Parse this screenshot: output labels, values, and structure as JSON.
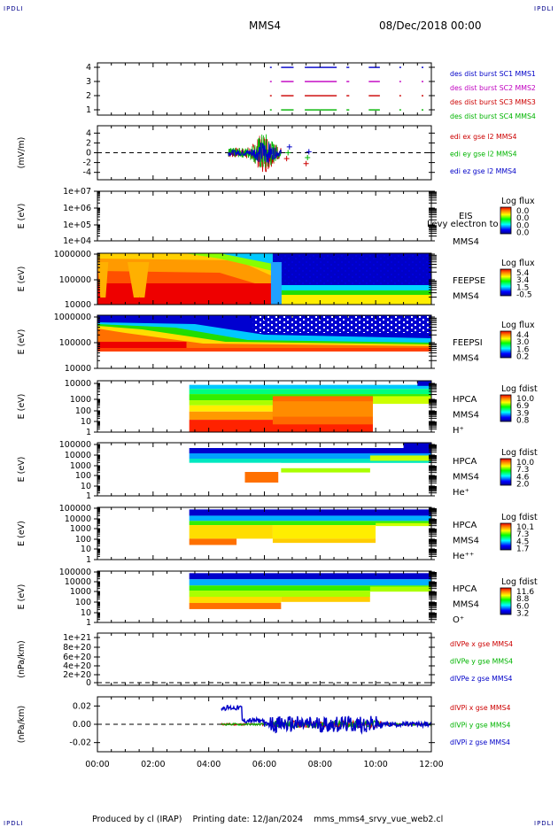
{
  "header": {
    "corner_label": "IPDLI",
    "spacecraft": "MMS4",
    "date_time": "08/Dec/2018 00:00"
  },
  "footer": {
    "produced_by": "Produced by cl (IRAP)",
    "printing_date": "Printing date: 12/Jan/2024",
    "script_name": "mms_mms4_srvy_vue_web2.cl"
  },
  "time_axis": {
    "ticks": [
      "00:00",
      "02:00",
      "04:00",
      "06:00",
      "08:00",
      "10:00",
      "12:00"
    ],
    "range_hours": [
      0,
      12
    ]
  },
  "chart_data": [
    {
      "id": "des-dist-burst",
      "type": "scatter",
      "yticks": [
        "4",
        "3",
        "2",
        "1"
      ],
      "ylim": [
        0.5,
        4.5
      ],
      "series": [
        {
          "name": "des dist burst SC1 MMS1",
          "color": "#0000c8",
          "y": 4
        },
        {
          "name": "des dist burst SC2 MMS2",
          "color": "#c000c0",
          "y": 3
        },
        {
          "name": "des dist burst SC3 MMS3",
          "color": "#cc0000",
          "y": 2
        },
        {
          "name": "des dist burst SC4 MMS4",
          "color": "#00b400",
          "y": 1
        }
      ],
      "burst_intervals_hours": [
        [
          6.2,
          6.25
        ],
        [
          6.6,
          7.05
        ],
        [
          7.45,
          8.6
        ],
        [
          8.95,
          9.05
        ],
        [
          9.75,
          10.15
        ],
        [
          10.85,
          10.9
        ],
        [
          11.65,
          11.7
        ]
      ]
    },
    {
      "id": "edi-e-field",
      "type": "line",
      "ylabel": "(mV/m)",
      "yticks": [
        "4",
        "2",
        "0",
        "-2",
        "-4"
      ],
      "ylim": [
        -5.5,
        5.5
      ],
      "series": [
        {
          "name": "edi ex gse l2 MMS4",
          "color": "#cc0000"
        },
        {
          "name": "edi ey gse l2 MMS4",
          "color": "#00b400"
        },
        {
          "name": "edi ez gse l2 MMS4",
          "color": "#0000c8"
        }
      ],
      "active_hours": [
        4.7,
        7.5
      ]
    },
    {
      "id": "eis",
      "type": "heatmap",
      "ylabel": "E (eV)",
      "yticks": [
        "1e+07",
        "1e+06",
        "1e+05",
        "1e+04"
      ],
      "labels": [
        "EIS",
        "MMS4"
      ],
      "overlay_text": "Levy electron to",
      "colorbar_title": "Log flux",
      "colorbar_ticks": [
        "0.0",
        "0.0",
        "0.0",
        "0.0"
      ]
    },
    {
      "id": "feeps-e",
      "type": "heatmap",
      "ylabel": "E (eV)",
      "yticks": [
        "1000000",
        "100000",
        "10000"
      ],
      "labels": [
        "FEEPSE",
        "MMS4"
      ],
      "colorbar_title": "Log flux",
      "colorbar_ticks": [
        "5.4",
        "3.4",
        "1.5",
        "-0.5"
      ],
      "transition_hours": 6.3
    },
    {
      "id": "feeps-i",
      "type": "heatmap",
      "ylabel": "E (eV)",
      "yticks": [
        "1000000",
        "100000",
        "10000"
      ],
      "labels": [
        "FEEPSI",
        "MMS4"
      ],
      "colorbar_title": "Log flux",
      "colorbar_ticks": [
        "4.4",
        "3.0",
        "1.6",
        "0.2"
      ]
    },
    {
      "id": "hpca-h",
      "type": "heatmap",
      "ylabel": "E (eV)",
      "yticks": [
        "10000",
        "1000",
        "100",
        "10",
        "1"
      ],
      "labels": [
        "HPCA",
        "MMS4",
        "H⁺"
      ],
      "colorbar_title": "Log fdist",
      "colorbar_ticks": [
        "10.0",
        "6.9",
        "3.9",
        "0.8"
      ],
      "data_start_hours": 3.3
    },
    {
      "id": "hpca-he",
      "type": "heatmap",
      "ylabel": "E (eV)",
      "yticks": [
        "100000",
        "10000",
        "1000",
        "100",
        "10",
        "1"
      ],
      "labels": [
        "HPCA",
        "MMS4",
        "He⁺"
      ],
      "colorbar_title": "Log fdist",
      "colorbar_ticks": [
        "10.0",
        "7.3",
        "4.6",
        "2.0"
      ],
      "data_start_hours": 3.3
    },
    {
      "id": "hpca-hepp",
      "type": "heatmap",
      "ylabel": "E (eV)",
      "yticks": [
        "100000",
        "10000",
        "1000",
        "100",
        "10",
        "1"
      ],
      "labels": [
        "HPCA",
        "MMS4",
        "He⁺⁺"
      ],
      "colorbar_title": "Log fdist",
      "colorbar_ticks": [
        "10.1",
        "7.3",
        "4.5",
        "1.7"
      ],
      "data_start_hours": 3.3
    },
    {
      "id": "hpca-o",
      "type": "heatmap",
      "ylabel": "E (eV)",
      "yticks": [
        "100000",
        "10000",
        "1000",
        "100",
        "10",
        "1"
      ],
      "labels": [
        "HPCA",
        "MMS4",
        "O⁺"
      ],
      "colorbar_title": "Log fdist",
      "colorbar_ticks": [
        "11.6",
        "8.8",
        "6.0",
        "3.2"
      ],
      "data_start_hours": 3.3
    },
    {
      "id": "divpe",
      "type": "line",
      "ylabel": "(nPa/km)",
      "yticks": [
        "1e+21",
        "8e+20",
        "6e+20",
        "4e+20",
        "2e+20",
        "0"
      ],
      "ylim": [
        0,
        1e+21
      ],
      "series": [
        {
          "name": "dIVPe x gse MMS4",
          "color": "#cc0000"
        },
        {
          "name": "dIVPe y gse MMS4",
          "color": "#00b400"
        },
        {
          "name": "dIVPe z gse MMS4",
          "color": "#0000c8"
        }
      ]
    },
    {
      "id": "divpi",
      "type": "line",
      "ylabel": "(nPa/km)",
      "yticks": [
        "0.02",
        "0.00",
        "-0.02"
      ],
      "ylim": [
        -0.03,
        0.03
      ],
      "series": [
        {
          "name": "dIVPi x gse MMS4",
          "color": "#cc0000"
        },
        {
          "name": "dIVPi y gse MMS4",
          "color": "#00b400"
        },
        {
          "name": "dIVPi z gse MMS4",
          "color": "#0000c8"
        }
      ],
      "active_hours": [
        4.45,
        12.0
      ]
    }
  ]
}
